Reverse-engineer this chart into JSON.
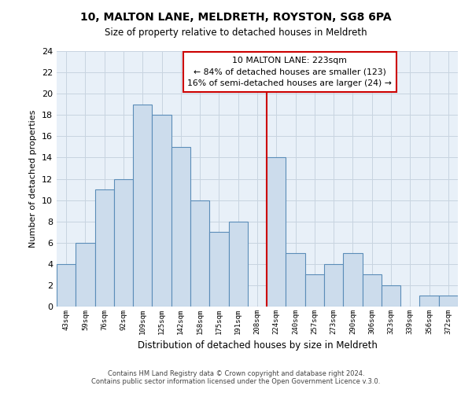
{
  "title": "10, MALTON LANE, MELDRETH, ROYSTON, SG8 6PA",
  "subtitle": "Size of property relative to detached houses in Meldreth",
  "xlabel": "Distribution of detached houses by size in Meldreth",
  "ylabel": "Number of detached properties",
  "footer_line1": "Contains HM Land Registry data © Crown copyright and database right 2024.",
  "footer_line2": "Contains public sector information licensed under the Open Government Licence v.3.0.",
  "bin_labels": [
    "43sqm",
    "59sqm",
    "76sqm",
    "92sqm",
    "109sqm",
    "125sqm",
    "142sqm",
    "158sqm",
    "175sqm",
    "191sqm",
    "208sqm",
    "224sqm",
    "240sqm",
    "257sqm",
    "273sqm",
    "290sqm",
    "306sqm",
    "323sqm",
    "339sqm",
    "356sqm",
    "372sqm"
  ],
  "bar_heights": [
    4,
    6,
    11,
    12,
    19,
    18,
    15,
    10,
    7,
    8,
    0,
    14,
    5,
    3,
    4,
    5,
    3,
    2,
    0,
    1,
    1
  ],
  "bar_color": "#ccdcec",
  "bar_edge_color": "#5b8db8",
  "vline_color": "#cc0000",
  "ylim": [
    0,
    24
  ],
  "yticks": [
    0,
    2,
    4,
    6,
    8,
    10,
    12,
    14,
    16,
    18,
    20,
    22,
    24
  ],
  "annotation_title": "10 MALTON LANE: 223sqm",
  "annotation_line1": "← 84% of detached houses are smaller (123)",
  "annotation_line2": "16% of semi-detached houses are larger (24) →",
  "annotation_box_color": "#ffffff",
  "annotation_box_edge": "#cc0000",
  "grid_color": "#c8d4e0",
  "bg_color": "#e8f0f8",
  "plot_bg_color": "#e8f0f8",
  "title_fontsize": 10,
  "subtitle_fontsize": 9
}
